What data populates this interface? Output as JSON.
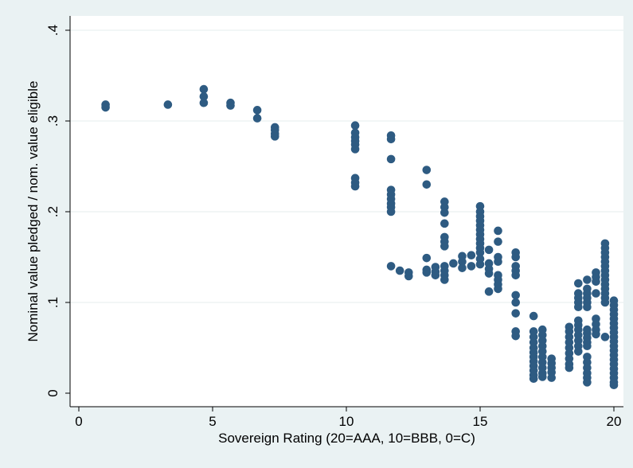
{
  "chart_data": {
    "type": "scatter",
    "title": "",
    "xlabel": "Sovereign Rating (20=AAA, 10=BBB, 0=C)",
    "ylabel": "Nominal value pledged / nom. value eligible",
    "xlim": [
      0,
      20
    ],
    "ylim": [
      0,
      0.4
    ],
    "x_ticks": [
      0,
      5,
      10,
      15,
      20
    ],
    "x_tick_labels": [
      "0",
      "5",
      "10",
      "15",
      "20"
    ],
    "y_ticks": [
      0,
      0.1,
      0.2,
      0.3,
      0.4
    ],
    "y_tick_labels": [
      "0",
      ".1",
      ".2",
      ".3",
      ".4"
    ],
    "grid": "horizontal",
    "marker_color": "#2e5b82",
    "plot_background": "#ffffff",
    "page_background": "#eaf2f3",
    "series": [
      {
        "points": [
          [
            1,
            0.318
          ],
          [
            1,
            0.315
          ],
          [
            3.33,
            0.318
          ],
          [
            4.67,
            0.335
          ],
          [
            4.67,
            0.327
          ],
          [
            4.67,
            0.32
          ],
          [
            5.67,
            0.32
          ],
          [
            5.67,
            0.317
          ],
          [
            6.67,
            0.312
          ],
          [
            6.67,
            0.303
          ],
          [
            7.33,
            0.293
          ],
          [
            7.33,
            0.29
          ],
          [
            7.33,
            0.286
          ],
          [
            7.33,
            0.283
          ],
          [
            10.33,
            0.295
          ],
          [
            10.33,
            0.287
          ],
          [
            10.33,
            0.282
          ],
          [
            10.33,
            0.278
          ],
          [
            10.33,
            0.274
          ],
          [
            10.33,
            0.269
          ],
          [
            10.33,
            0.237
          ],
          [
            10.33,
            0.232
          ],
          [
            10.33,
            0.228
          ],
          [
            11.67,
            0.284
          ],
          [
            11.67,
            0.28
          ],
          [
            11.67,
            0.258
          ],
          [
            11.67,
            0.224
          ],
          [
            11.67,
            0.219
          ],
          [
            11.67,
            0.214
          ],
          [
            11.67,
            0.209
          ],
          [
            11.67,
            0.205
          ],
          [
            11.67,
            0.2
          ],
          [
            11.67,
            0.14
          ],
          [
            12,
            0.135
          ],
          [
            12.33,
            0.133
          ],
          [
            12.33,
            0.129
          ],
          [
            13,
            0.246
          ],
          [
            13,
            0.23
          ],
          [
            13,
            0.149
          ],
          [
            13,
            0.136
          ],
          [
            13,
            0.133
          ],
          [
            13.33,
            0.139
          ],
          [
            13.33,
            0.134
          ],
          [
            13.33,
            0.13
          ],
          [
            13.67,
            0.211
          ],
          [
            13.67,
            0.205
          ],
          [
            13.67,
            0.199
          ],
          [
            13.67,
            0.187
          ],
          [
            13.67,
            0.172
          ],
          [
            13.67,
            0.167
          ],
          [
            13.67,
            0.162
          ],
          [
            13.67,
            0.14
          ],
          [
            13.67,
            0.135
          ],
          [
            13.67,
            0.13
          ],
          [
            13.67,
            0.125
          ],
          [
            14,
            0.143
          ],
          [
            14.33,
            0.151
          ],
          [
            14.33,
            0.145
          ],
          [
            14.33,
            0.138
          ],
          [
            14.67,
            0.152
          ],
          [
            14.67,
            0.14
          ],
          [
            15,
            0.206
          ],
          [
            15,
            0.2
          ],
          [
            15,
            0.195
          ],
          [
            15,
            0.19
          ],
          [
            15,
            0.185
          ],
          [
            15,
            0.18
          ],
          [
            15,
            0.175
          ],
          [
            15,
            0.17
          ],
          [
            15,
            0.165
          ],
          [
            15,
            0.16
          ],
          [
            15,
            0.155
          ],
          [
            15,
            0.148
          ],
          [
            15,
            0.142
          ],
          [
            15.33,
            0.158
          ],
          [
            15.33,
            0.143
          ],
          [
            15.33,
            0.137
          ],
          [
            15.33,
            0.132
          ],
          [
            15.33,
            0.112
          ],
          [
            15.67,
            0.179
          ],
          [
            15.67,
            0.167
          ],
          [
            15.67,
            0.15
          ],
          [
            15.67,
            0.145
          ],
          [
            15.67,
            0.13
          ],
          [
            15.67,
            0.125
          ],
          [
            15.67,
            0.12
          ],
          [
            15.67,
            0.115
          ],
          [
            16.33,
            0.155
          ],
          [
            16.33,
            0.15
          ],
          [
            16.33,
            0.14
          ],
          [
            16.33,
            0.135
          ],
          [
            16.33,
            0.13
          ],
          [
            16.33,
            0.108
          ],
          [
            16.33,
            0.1
          ],
          [
            16.33,
            0.088
          ],
          [
            16.33,
            0.068
          ],
          [
            16.33,
            0.063
          ],
          [
            17,
            0.085
          ],
          [
            17,
            0.068
          ],
          [
            17,
            0.062
          ],
          [
            17,
            0.056
          ],
          [
            17,
            0.05
          ],
          [
            17,
            0.045
          ],
          [
            17,
            0.04
          ],
          [
            17,
            0.035
          ],
          [
            17,
            0.03
          ],
          [
            17,
            0.025
          ],
          [
            17,
            0.02
          ],
          [
            17,
            0.016
          ],
          [
            17.33,
            0.07
          ],
          [
            17.33,
            0.064
          ],
          [
            17.33,
            0.058
          ],
          [
            17.33,
            0.052
          ],
          [
            17.33,
            0.046
          ],
          [
            17.33,
            0.04
          ],
          [
            17.33,
            0.034
          ],
          [
            17.33,
            0.028
          ],
          [
            17.33,
            0.022
          ],
          [
            17.33,
            0.018
          ],
          [
            17.67,
            0.038
          ],
          [
            17.67,
            0.033
          ],
          [
            17.67,
            0.028
          ],
          [
            17.67,
            0.023
          ],
          [
            17.67,
            0.017
          ],
          [
            18.33,
            0.073
          ],
          [
            18.33,
            0.068
          ],
          [
            18.33,
            0.062
          ],
          [
            18.33,
            0.056
          ],
          [
            18.33,
            0.05
          ],
          [
            18.33,
            0.044
          ],
          [
            18.33,
            0.038
          ],
          [
            18.33,
            0.032
          ],
          [
            18.33,
            0.028
          ],
          [
            18.67,
            0.121
          ],
          [
            18.67,
            0.11
          ],
          [
            18.67,
            0.105
          ],
          [
            18.67,
            0.1
          ],
          [
            18.67,
            0.095
          ],
          [
            18.67,
            0.08
          ],
          [
            18.67,
            0.075
          ],
          [
            18.67,
            0.07
          ],
          [
            18.67,
            0.064
          ],
          [
            18.67,
            0.058
          ],
          [
            18.67,
            0.052
          ],
          [
            18.67,
            0.046
          ],
          [
            19,
            0.125
          ],
          [
            19,
            0.115
          ],
          [
            19,
            0.11
          ],
          [
            19,
            0.105
          ],
          [
            19,
            0.1
          ],
          [
            19,
            0.095
          ],
          [
            19,
            0.07
          ],
          [
            19,
            0.066
          ],
          [
            19,
            0.061
          ],
          [
            19,
            0.056
          ],
          [
            19,
            0.052
          ],
          [
            19,
            0.04
          ],
          [
            19,
            0.034
          ],
          [
            19,
            0.028
          ],
          [
            19,
            0.022
          ],
          [
            19,
            0.017
          ],
          [
            19,
            0.012
          ],
          [
            19.33,
            0.133
          ],
          [
            19.33,
            0.128
          ],
          [
            19.33,
            0.123
          ],
          [
            19.33,
            0.11
          ],
          [
            19.33,
            0.082
          ],
          [
            19.33,
            0.076
          ],
          [
            19.33,
            0.07
          ],
          [
            19.33,
            0.065
          ],
          [
            19.67,
            0.165
          ],
          [
            19.67,
            0.16
          ],
          [
            19.67,
            0.155
          ],
          [
            19.67,
            0.15
          ],
          [
            19.67,
            0.145
          ],
          [
            19.67,
            0.14
          ],
          [
            19.67,
            0.135
          ],
          [
            19.67,
            0.13
          ],
          [
            19.67,
            0.125
          ],
          [
            19.67,
            0.12
          ],
          [
            19.67,
            0.115
          ],
          [
            19.67,
            0.11
          ],
          [
            19.67,
            0.105
          ],
          [
            19.67,
            0.1
          ],
          [
            19.67,
            0.062
          ],
          [
            20,
            0.102
          ],
          [
            20,
            0.097
          ],
          [
            20,
            0.092
          ],
          [
            20,
            0.087
          ],
          [
            20,
            0.082
          ],
          [
            20,
            0.077
          ],
          [
            20,
            0.072
          ],
          [
            20,
            0.067
          ],
          [
            20,
            0.062
          ],
          [
            20,
            0.057
          ],
          [
            20,
            0.052
          ],
          [
            20,
            0.047
          ],
          [
            20,
            0.042
          ],
          [
            20,
            0.037
          ],
          [
            20,
            0.032
          ],
          [
            20,
            0.027
          ],
          [
            20,
            0.022
          ],
          [
            20,
            0.017
          ],
          [
            20,
            0.012
          ],
          [
            20,
            0.009
          ]
        ]
      }
    ]
  }
}
